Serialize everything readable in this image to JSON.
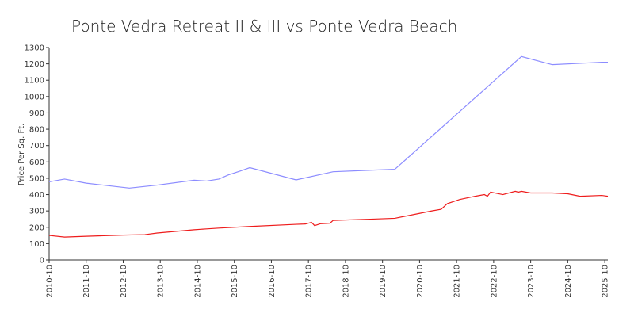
{
  "chart_data": {
    "type": "line",
    "title": "Ponte Vedra Retreat II & III vs Ponte Vedra Beach",
    "y_label": "Price Per Sq. Ft.",
    "xlim": [
      "2010-10",
      "2025-11"
    ],
    "xticks": [
      "2010-10",
      "2011-10",
      "2012-10",
      "2013-10",
      "2014-10",
      "2015-10",
      "2016-10",
      "2017-10",
      "2018-10",
      "2019-10",
      "2020-10",
      "2021-10",
      "2022-10",
      "2023-10",
      "2024-10",
      "2025-10"
    ],
    "ylim": [
      0,
      1300
    ],
    "yticks": [
      0,
      100,
      200,
      300,
      400,
      500,
      600,
      700,
      800,
      900,
      1000,
      1100,
      1200,
      1300
    ],
    "series": [
      {
        "color": "#8c8cff",
        "x": [
          "2010-10",
          "2011-03",
          "2011-10",
          "2012-12",
          "2013-09",
          "2014-09",
          "2015-01",
          "2015-05",
          "2015-08",
          "2015-12",
          "2016-03",
          "2017-06",
          "2018-06",
          "2019-07",
          "2020-02",
          "2023-07",
          "2024-05",
          "2025-04",
          "2025-09",
          "2025-11"
        ],
        "values": [
          478,
          495,
          470,
          440,
          458,
          488,
          483,
          495,
          520,
          545,
          565,
          490,
          540,
          550,
          555,
          1245,
          1195,
          1205,
          1210,
          1210
        ]
      },
      {
        "color": "#ee1c1c",
        "x": [
          "2010-10",
          "2011-03",
          "2011-10",
          "2012-10",
          "2013-05",
          "2013-09",
          "2014-09",
          "2015-01",
          "2015-05",
          "2016-03",
          "2017-06",
          "2017-09",
          "2017-11",
          "2017-12",
          "2018-02",
          "2018-05",
          "2018-06",
          "2019-07",
          "2020-02",
          "2020-10",
          "2021-02",
          "2021-05",
          "2021-07",
          "2021-11",
          "2022-04",
          "2022-07",
          "2022-08",
          "2022-09",
          "2023-01",
          "2023-05",
          "2023-06",
          "2023-07",
          "2023-10",
          "2024-05",
          "2024-10",
          "2025-02",
          "2025-09",
          "2025-11"
        ],
        "values": [
          150,
          140,
          145,
          152,
          155,
          165,
          185,
          190,
          195,
          205,
          218,
          220,
          230,
          210,
          222,
          225,
          242,
          250,
          255,
          285,
          300,
          310,
          345,
          370,
          390,
          400,
          390,
          415,
          400,
          420,
          415,
          420,
          410,
          410,
          405,
          390,
          395,
          390
        ]
      }
    ]
  }
}
